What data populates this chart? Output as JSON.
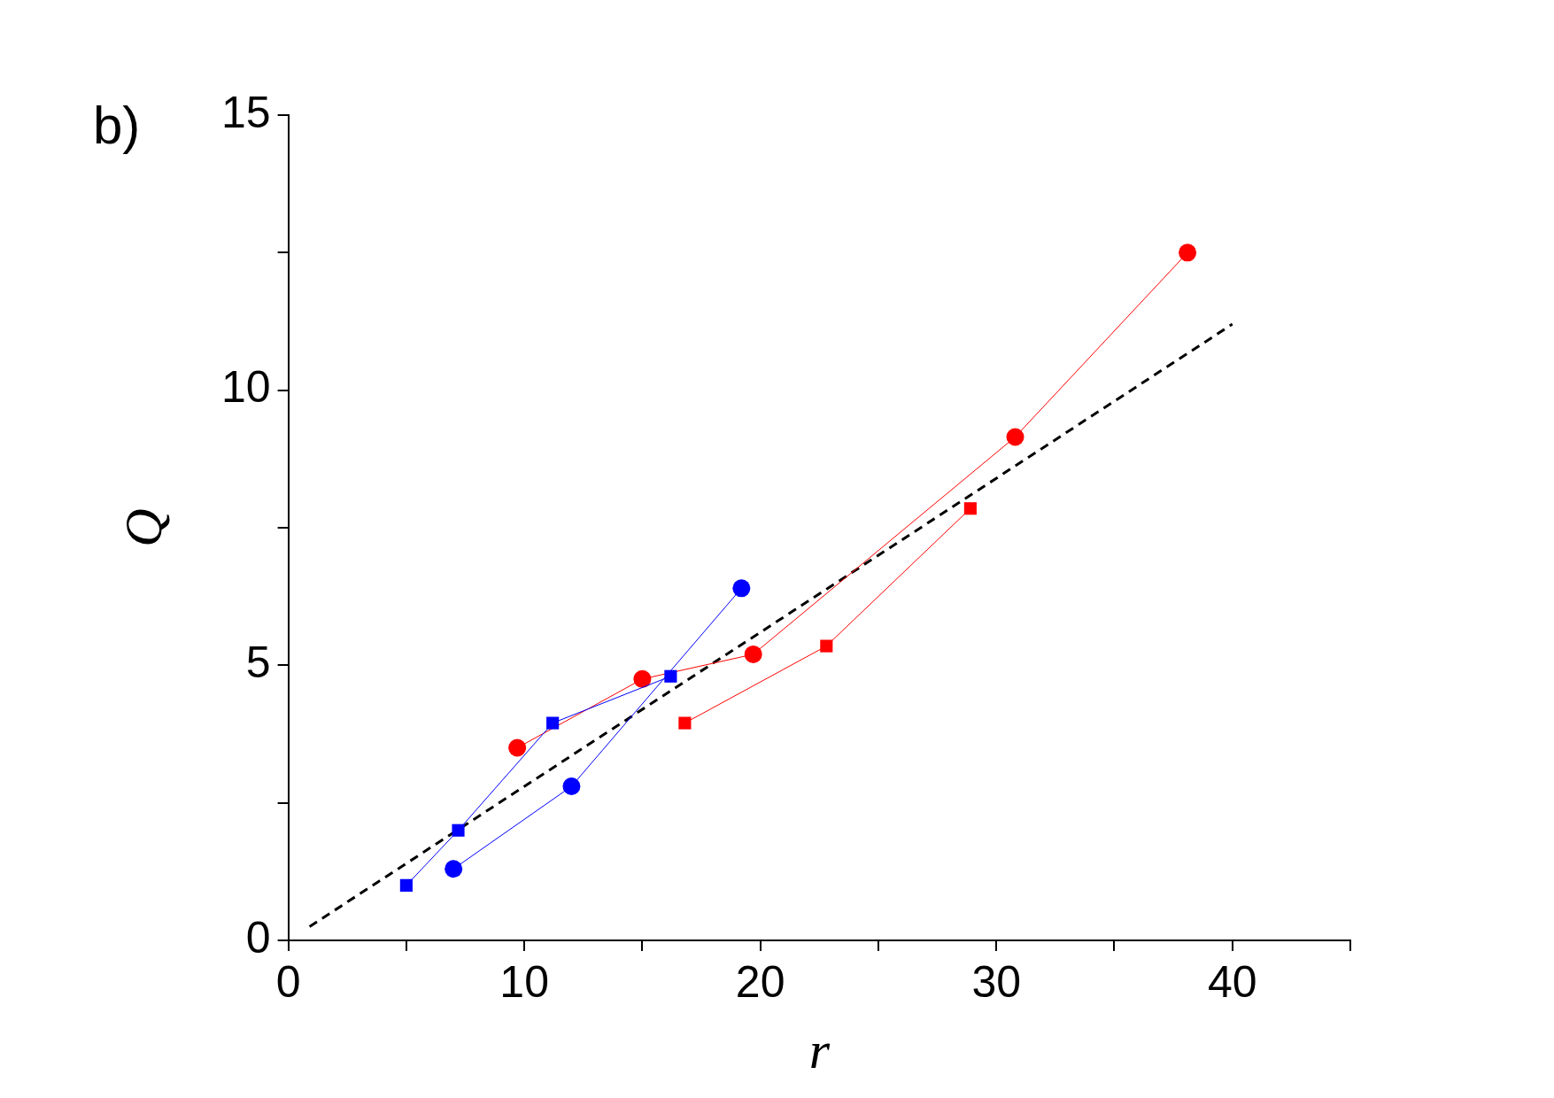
{
  "chart_data": {
    "type": "line",
    "xlabel": "r",
    "ylabel": "Q",
    "annotations": [
      "b)"
    ],
    "xlim": [
      0,
      45
    ],
    "xticks": [
      0,
      {
        "value": 5,
        "label": null
      },
      10,
      {
        "value": 15,
        "label": null
      },
      20,
      {
        "value": 25,
        "label": null
      },
      30,
      {
        "value": 35,
        "label": null
      },
      40,
      {
        "value": 45,
        "label": null
      }
    ],
    "ylim": [
      0,
      15
    ],
    "yticks": [
      0,
      {
        "value": 2.5,
        "label": null
      },
      5,
      {
        "value": 7.5,
        "label": null
      },
      10,
      {
        "value": 12.5,
        "label": null
      },
      15
    ],
    "grid": false,
    "legend": false,
    "series": [
      {
        "color": "#0000ff",
        "marker": "square",
        "x": [
          5.0,
          7.2,
          11.2,
          16.2
        ],
        "values": [
          1.0,
          2.0,
          3.95,
          4.8
        ]
      },
      {
        "color": "#0000ff",
        "marker": "circle",
        "x": [
          7.0,
          12.0,
          19.2
        ],
        "values": [
          1.3,
          2.8,
          6.4
        ]
      },
      {
        "color": "#ff0000",
        "marker": "circle",
        "x": [
          9.7,
          15.0,
          19.7,
          30.8,
          38.1
        ],
        "values": [
          3.5,
          4.75,
          5.2,
          9.15,
          12.5
        ]
      },
      {
        "color": "#ff0000",
        "marker": "square",
        "x": [
          16.8,
          22.8,
          28.9
        ],
        "values": [
          3.95,
          5.35,
          7.85
        ]
      },
      {
        "color": "#000000",
        "marker": "none",
        "line_style": "dashed",
        "x": [
          0.9,
          40
        ],
        "values": [
          0.25,
          11.2
        ]
      }
    ]
  }
}
